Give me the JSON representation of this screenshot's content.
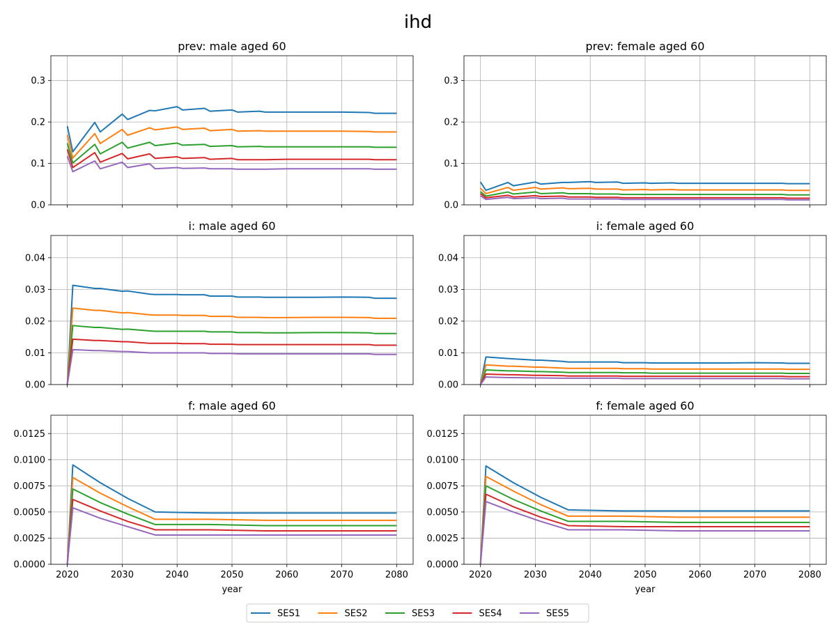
{
  "title": "ihd",
  "colors": {
    "SES1": "#1f77b4",
    "SES2": "#ff7f0e",
    "SES3": "#2ca02c",
    "SES4": "#d62728",
    "SES5": "#9467bd"
  },
  "legend": {
    "placement": "bottom-center",
    "entries": [
      "SES1",
      "SES2",
      "SES3",
      "SES4",
      "SES5"
    ]
  },
  "chart_data": [
    {
      "type": "line",
      "title": "prev: male aged 60",
      "xlabel": "",
      "xlim": [
        2017.0,
        2083.0
      ],
      "ylim": [
        0.0,
        0.36
      ],
      "xticks": [
        2020,
        2030,
        2040,
        2050,
        2060,
        2070,
        2080
      ],
      "yticks": [
        0.0,
        0.1,
        0.2,
        0.3
      ],
      "ytick_labels": [
        "0.0",
        "0.1",
        "0.2",
        "0.3"
      ],
      "show_xtick_labels": false,
      "grid": true,
      "x": [
        2020,
        2021,
        2025,
        2026,
        2030,
        2031,
        2035,
        2036,
        2040,
        2041,
        2045,
        2046,
        2050,
        2051,
        2055,
        2056,
        2060,
        2065,
        2070,
        2075,
        2076,
        2080
      ],
      "series": [
        {
          "name": "SES1",
          "values": [
            0.19,
            0.128,
            0.199,
            0.176,
            0.219,
            0.206,
            0.228,
            0.227,
            0.237,
            0.229,
            0.233,
            0.226,
            0.229,
            0.224,
            0.226,
            0.224,
            0.224,
            0.224,
            0.224,
            0.223,
            0.221,
            0.221
          ]
        },
        {
          "name": "SES2",
          "values": [
            0.169,
            0.113,
            0.172,
            0.148,
            0.182,
            0.168,
            0.186,
            0.181,
            0.188,
            0.182,
            0.185,
            0.179,
            0.182,
            0.178,
            0.179,
            0.178,
            0.178,
            0.178,
            0.178,
            0.177,
            0.176,
            0.176
          ]
        },
        {
          "name": "SES3",
          "values": [
            0.149,
            0.101,
            0.146,
            0.123,
            0.151,
            0.137,
            0.151,
            0.143,
            0.149,
            0.144,
            0.146,
            0.141,
            0.143,
            0.14,
            0.141,
            0.14,
            0.14,
            0.14,
            0.14,
            0.14,
            0.139,
            0.139
          ]
        },
        {
          "name": "SES4",
          "values": [
            0.134,
            0.09,
            0.126,
            0.103,
            0.124,
            0.111,
            0.123,
            0.112,
            0.116,
            0.112,
            0.114,
            0.11,
            0.112,
            0.109,
            0.109,
            0.109,
            0.11,
            0.11,
            0.11,
            0.11,
            0.109,
            0.109
          ]
        },
        {
          "name": "SES5",
          "values": [
            0.118,
            0.08,
            0.106,
            0.087,
            0.103,
            0.09,
            0.099,
            0.087,
            0.09,
            0.088,
            0.089,
            0.087,
            0.087,
            0.086,
            0.086,
            0.086,
            0.087,
            0.087,
            0.087,
            0.087,
            0.086,
            0.086
          ]
        }
      ]
    },
    {
      "type": "line",
      "title": "prev: female aged 60",
      "xlabel": "",
      "xlim": [
        2017.0,
        2083.0
      ],
      "ylim": [
        0.0,
        0.36
      ],
      "xticks": [
        2020,
        2030,
        2040,
        2050,
        2060,
        2070,
        2080
      ],
      "yticks": [
        0.0,
        0.1,
        0.2,
        0.3
      ],
      "ytick_labels": [
        "0.0",
        "0.1",
        "0.2",
        "0.3"
      ],
      "show_xtick_labels": false,
      "grid": true,
      "x": [
        2020,
        2021,
        2025,
        2026,
        2030,
        2031,
        2035,
        2036,
        2040,
        2041,
        2045,
        2046,
        2050,
        2051,
        2055,
        2056,
        2060,
        2065,
        2070,
        2075,
        2076,
        2080
      ],
      "series": [
        {
          "name": "SES1",
          "values": [
            0.055,
            0.035,
            0.054,
            0.046,
            0.055,
            0.05,
            0.054,
            0.054,
            0.056,
            0.054,
            0.055,
            0.052,
            0.053,
            0.052,
            0.053,
            0.052,
            0.052,
            0.052,
            0.052,
            0.052,
            0.051,
            0.051
          ]
        },
        {
          "name": "SES2",
          "values": [
            0.04,
            0.027,
            0.042,
            0.035,
            0.042,
            0.038,
            0.041,
            0.039,
            0.04,
            0.038,
            0.038,
            0.036,
            0.037,
            0.036,
            0.037,
            0.036,
            0.036,
            0.036,
            0.036,
            0.036,
            0.035,
            0.035
          ]
        },
        {
          "name": "SES3",
          "values": [
            0.032,
            0.021,
            0.031,
            0.026,
            0.031,
            0.027,
            0.029,
            0.027,
            0.027,
            0.026,
            0.026,
            0.025,
            0.025,
            0.025,
            0.025,
            0.025,
            0.025,
            0.025,
            0.025,
            0.025,
            0.024,
            0.024
          ]
        },
        {
          "name": "SES4",
          "values": [
            0.027,
            0.017,
            0.023,
            0.019,
            0.022,
            0.02,
            0.021,
            0.019,
            0.019,
            0.018,
            0.018,
            0.017,
            0.017,
            0.017,
            0.017,
            0.017,
            0.017,
            0.017,
            0.017,
            0.017,
            0.016,
            0.016
          ]
        },
        {
          "name": "SES5",
          "values": [
            0.022,
            0.013,
            0.018,
            0.015,
            0.017,
            0.015,
            0.016,
            0.014,
            0.014,
            0.014,
            0.014,
            0.013,
            0.013,
            0.013,
            0.013,
            0.013,
            0.013,
            0.013,
            0.013,
            0.013,
            0.012,
            0.012
          ]
        }
      ]
    },
    {
      "type": "line",
      "title": "i: male aged 60",
      "xlabel": "",
      "xlim": [
        2017.0,
        2083.0
      ],
      "ylim": [
        0.0,
        0.047
      ],
      "xticks": [
        2020,
        2030,
        2040,
        2050,
        2060,
        2070,
        2080
      ],
      "yticks": [
        0.0,
        0.01,
        0.02,
        0.03,
        0.04
      ],
      "ytick_labels": [
        "0.00",
        "0.01",
        "0.02",
        "0.03",
        "0.04"
      ],
      "show_xtick_labels": false,
      "grid": true,
      "x": [
        2020,
        2021,
        2025,
        2026,
        2030,
        2031,
        2035,
        2036,
        2040,
        2041,
        2045,
        2046,
        2050,
        2051,
        2055,
        2056,
        2060,
        2065,
        2070,
        2075,
        2076,
        2080
      ],
      "series": [
        {
          "name": "SES1",
          "values": [
            0.0,
            0.0313,
            0.0303,
            0.0303,
            0.0294,
            0.0295,
            0.0285,
            0.0284,
            0.0284,
            0.0283,
            0.0283,
            0.0279,
            0.0279,
            0.0276,
            0.0276,
            0.0275,
            0.0275,
            0.0275,
            0.0276,
            0.0275,
            0.0272,
            0.0272
          ]
        },
        {
          "name": "SES2",
          "values": [
            0.0,
            0.0241,
            0.0234,
            0.0234,
            0.0226,
            0.0227,
            0.022,
            0.0219,
            0.0219,
            0.0218,
            0.0218,
            0.0215,
            0.0215,
            0.0212,
            0.0212,
            0.0211,
            0.0211,
            0.0212,
            0.0212,
            0.0211,
            0.0209,
            0.0209
          ]
        },
        {
          "name": "SES3",
          "values": [
            0.0,
            0.0186,
            0.018,
            0.018,
            0.0174,
            0.0175,
            0.0169,
            0.0168,
            0.0168,
            0.0168,
            0.0168,
            0.0166,
            0.0166,
            0.0164,
            0.0164,
            0.0163,
            0.0163,
            0.0164,
            0.0164,
            0.0163,
            0.0161,
            0.0161
          ]
        },
        {
          "name": "SES4",
          "values": [
            0.0,
            0.0143,
            0.0139,
            0.0139,
            0.0135,
            0.0135,
            0.013,
            0.013,
            0.013,
            0.0129,
            0.0129,
            0.0127,
            0.0127,
            0.0126,
            0.0126,
            0.0126,
            0.0126,
            0.0126,
            0.0126,
            0.0126,
            0.0124,
            0.0124
          ]
        },
        {
          "name": "SES5",
          "values": [
            0.0,
            0.011,
            0.0107,
            0.0107,
            0.0104,
            0.0104,
            0.01,
            0.01,
            0.01,
            0.01,
            0.01,
            0.0098,
            0.0098,
            0.0097,
            0.0097,
            0.0097,
            0.0097,
            0.0097,
            0.0097,
            0.0097,
            0.0095,
            0.0095
          ]
        }
      ]
    },
    {
      "type": "line",
      "title": "i: female aged 60",
      "xlabel": "",
      "xlim": [
        2017.0,
        2083.0
      ],
      "ylim": [
        0.0,
        0.047
      ],
      "xticks": [
        2020,
        2030,
        2040,
        2050,
        2060,
        2070,
        2080
      ],
      "yticks": [
        0.0,
        0.01,
        0.02,
        0.03,
        0.04
      ],
      "ytick_labels": [
        "0.00",
        "0.01",
        "0.02",
        "0.03",
        "0.04"
      ],
      "show_xtick_labels": false,
      "grid": true,
      "x": [
        2020,
        2021,
        2025,
        2026,
        2030,
        2031,
        2035,
        2036,
        2040,
        2041,
        2045,
        2046,
        2050,
        2051,
        2055,
        2056,
        2060,
        2065,
        2070,
        2075,
        2076,
        2080
      ],
      "series": [
        {
          "name": "SES1",
          "values": [
            0.0,
            0.0087,
            0.0082,
            0.0081,
            0.0077,
            0.0077,
            0.0073,
            0.0071,
            0.0071,
            0.0071,
            0.0071,
            0.0069,
            0.0069,
            0.0068,
            0.0068,
            0.0068,
            0.0068,
            0.0068,
            0.0069,
            0.0068,
            0.0067,
            0.0067
          ]
        },
        {
          "name": "SES2",
          "values": [
            0.0,
            0.0062,
            0.0058,
            0.0058,
            0.0055,
            0.0055,
            0.0052,
            0.0051,
            0.0051,
            0.0051,
            0.0051,
            0.005,
            0.005,
            0.0049,
            0.0049,
            0.0049,
            0.0049,
            0.0049,
            0.0049,
            0.0049,
            0.0048,
            0.0048
          ]
        },
        {
          "name": "SES3",
          "values": [
            0.0,
            0.0046,
            0.0043,
            0.0043,
            0.0041,
            0.0041,
            0.0039,
            0.0038,
            0.0038,
            0.0038,
            0.0038,
            0.0037,
            0.0037,
            0.0036,
            0.0036,
            0.0036,
            0.0036,
            0.0036,
            0.0036,
            0.0036,
            0.0035,
            0.0035
          ]
        },
        {
          "name": "SES4",
          "values": [
            0.0,
            0.0033,
            0.0031,
            0.0031,
            0.0029,
            0.0029,
            0.0028,
            0.0027,
            0.0027,
            0.0027,
            0.0027,
            0.0026,
            0.0026,
            0.0026,
            0.0026,
            0.0026,
            0.0026,
            0.0026,
            0.0026,
            0.0026,
            0.0025,
            0.0025
          ]
        },
        {
          "name": "SES5",
          "values": [
            0.0,
            0.0024,
            0.0022,
            0.0022,
            0.0021,
            0.0021,
            0.002,
            0.002,
            0.002,
            0.002,
            0.002,
            0.0019,
            0.0019,
            0.0019,
            0.0019,
            0.0019,
            0.0019,
            0.0019,
            0.0019,
            0.0019,
            0.0018,
            0.0018
          ]
        }
      ]
    },
    {
      "type": "line",
      "title": "f: male aged 60",
      "xlabel": "year",
      "xlim": [
        2017.0,
        2083.0
      ],
      "ylim": [
        0.0,
        0.01425
      ],
      "xticks": [
        2020,
        2030,
        2040,
        2050,
        2060,
        2070,
        2080
      ],
      "yticks": [
        0.0,
        0.0025,
        0.005,
        0.0075,
        0.01,
        0.0125
      ],
      "ytick_labels": [
        "0.0000",
        "0.0025",
        "0.0050",
        "0.0075",
        "0.0100",
        "0.0125"
      ],
      "show_xtick_labels": true,
      "grid": true,
      "x": [
        2020,
        2021,
        2026,
        2031,
        2036,
        2046,
        2056,
        2066,
        2076,
        2080
      ],
      "series": [
        {
          "name": "SES1",
          "values": [
            0.0,
            0.0095,
            0.0078,
            0.0063,
            0.005,
            0.0049,
            0.0049,
            0.0049,
            0.0049,
            0.0049
          ]
        },
        {
          "name": "SES2",
          "values": [
            0.0,
            0.0083,
            0.0068,
            0.0055,
            0.0043,
            0.0043,
            0.0042,
            0.0042,
            0.0042,
            0.0042
          ]
        },
        {
          "name": "SES3",
          "values": [
            0.0,
            0.0072,
            0.0059,
            0.0048,
            0.0038,
            0.0038,
            0.0037,
            0.0037,
            0.0037,
            0.0037
          ]
        },
        {
          "name": "SES4",
          "values": [
            0.0,
            0.0062,
            0.0051,
            0.0041,
            0.0033,
            0.0033,
            0.0032,
            0.0032,
            0.0032,
            0.0032
          ]
        },
        {
          "name": "SES5",
          "values": [
            0.0,
            0.0054,
            0.0044,
            0.0036,
            0.0028,
            0.0028,
            0.0028,
            0.0028,
            0.0028,
            0.0028
          ]
        }
      ]
    },
    {
      "type": "line",
      "title": "f: female aged 60",
      "xlabel": "year",
      "xlim": [
        2017.0,
        2083.0
      ],
      "ylim": [
        0.0,
        0.01425
      ],
      "xticks": [
        2020,
        2030,
        2040,
        2050,
        2060,
        2070,
        2080
      ],
      "yticks": [
        0.0,
        0.0025,
        0.005,
        0.0075,
        0.01,
        0.0125
      ],
      "ytick_labels": [
        "0.0000",
        "0.0025",
        "0.0050",
        "0.0075",
        "0.0100",
        "0.0125"
      ],
      "show_xtick_labels": true,
      "grid": true,
      "x": [
        2020,
        2021,
        2026,
        2031,
        2036,
        2046,
        2056,
        2066,
        2076,
        2080
      ],
      "series": [
        {
          "name": "SES1",
          "values": [
            0.0,
            0.0094,
            0.0078,
            0.0064,
            0.0052,
            0.0051,
            0.0051,
            0.0051,
            0.0051,
            0.0051
          ]
        },
        {
          "name": "SES2",
          "values": [
            0.0,
            0.0084,
            0.007,
            0.0057,
            0.0046,
            0.0046,
            0.0045,
            0.0045,
            0.0045,
            0.0045
          ]
        },
        {
          "name": "SES3",
          "values": [
            0.0,
            0.0075,
            0.0062,
            0.0051,
            0.0041,
            0.0041,
            0.004,
            0.004,
            0.004,
            0.004
          ]
        },
        {
          "name": "SES4",
          "values": [
            0.0,
            0.0067,
            0.0055,
            0.0045,
            0.0037,
            0.0036,
            0.0036,
            0.0036,
            0.0036,
            0.0036
          ]
        },
        {
          "name": "SES5",
          "values": [
            0.0,
            0.006,
            0.005,
            0.0041,
            0.0033,
            0.0033,
            0.0032,
            0.0032,
            0.0032,
            0.0032
          ]
        }
      ]
    }
  ]
}
